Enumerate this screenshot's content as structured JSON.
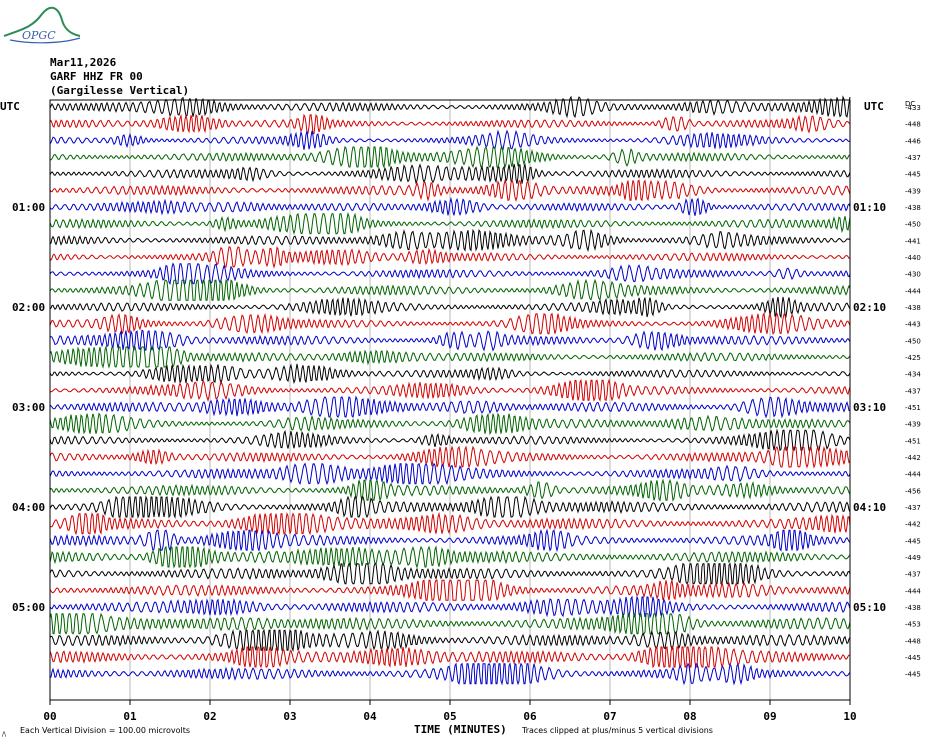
{
  "logo": {
    "text": "OPGC",
    "colors": {
      "mountain": "#2e8b57",
      "text": "#3a5fb0"
    }
  },
  "header": {
    "date": "Mar11,2026",
    "station": "GARF HHZ FR 00",
    "location": "(Gargilesse Vertical)"
  },
  "axis": {
    "left_label": "UTC",
    "right_label": "UTC",
    "dc_label": "DC",
    "xlabel": "TIME (MINUTES)",
    "x_ticks": [
      "00",
      "01",
      "02",
      "03",
      "04",
      "05",
      "06",
      "07",
      "08",
      "09",
      "10"
    ],
    "left_hour_labels": [
      "01:00",
      "02:00",
      "03:00",
      "04:00",
      "05:00"
    ],
    "right_hour_labels": [
      "01:10",
      "02:10",
      "03:10",
      "04:10",
      "05:10"
    ]
  },
  "footer": {
    "scale_note": "Each Vertical Division =  100.00 microvolts",
    "clip_note": "Traces clipped at plus/minus 5 vertical divisions"
  },
  "chart_data": {
    "type": "line",
    "title": "",
    "xlabel": "TIME (MINUTES)",
    "ylabel": "",
    "xlim": [
      0,
      10
    ],
    "grid": true,
    "trace_colors": [
      "#000000",
      "#d40000",
      "#0000cc",
      "#006400"
    ],
    "dc_offsets": [
      -433,
      -448,
      -446,
      -437,
      -445,
      -439,
      -438,
      -450,
      -441,
      -440,
      -430,
      -444,
      -438,
      -443,
      -450,
      -425,
      -434,
      -437,
      -451,
      -439,
      -451,
      -442,
      -444,
      -456,
      -437,
      -442,
      -445,
      -449,
      -437,
      -444,
      -438,
      -453,
      -448,
      -445,
      -445
    ],
    "amplitude_profile": [
      1.0,
      0.9,
      0.85,
      0.95,
      1.0,
      1.1,
      0.9,
      1.0,
      1.05,
      0.95,
      1.0,
      1.1,
      1.0,
      0.95,
      1.05,
      1.0,
      0.9,
      1.0,
      1.1,
      1.0,
      0.95,
      1.05,
      1.1,
      1.2,
      1.3,
      1.25,
      1.2,
      1.3,
      1.25,
      1.3,
      1.25,
      1.35,
      1.3,
      1.4,
      1.35
    ]
  }
}
